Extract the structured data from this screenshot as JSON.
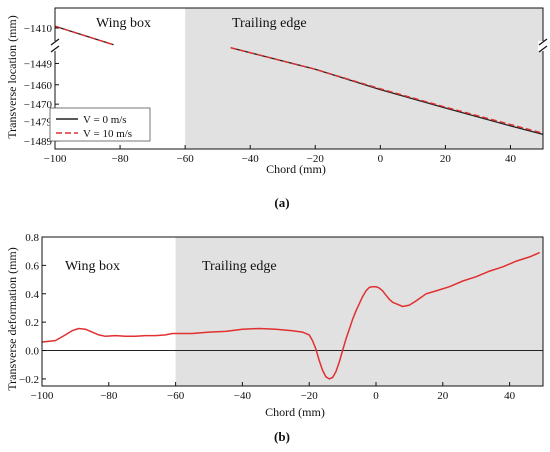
{
  "chart_data": [
    {
      "type": "line",
      "panel_label": "(a)",
      "xlabel": "Chord (mm)",
      "ylabel": "Transverse location (mm)",
      "xlim": [
        -100,
        50
      ],
      "ylim_upper_segment": [
        -1413,
        -1408
      ],
      "ylim_lower_segment": [
        -1489,
        -1440
      ],
      "axis_break": true,
      "x_ticks": [
        -100,
        -80,
        -60,
        -40,
        -20,
        0,
        20,
        40
      ],
      "x_tick_labels": [
        "−100",
        "−80",
        "−60",
        "−40",
        "−20",
        "0",
        "20",
        "40"
      ],
      "y_ticks": [
        -1410,
        -1449,
        -1460,
        -1470,
        -1479,
        -1489
      ],
      "y_tick_labels": [
        "−1410",
        "−1449",
        "−1460",
        "−1470",
        "−1479",
        "−1489"
      ],
      "grid": false,
      "legend_placement": "bottom-left",
      "regions": [
        {
          "label": "Wing box",
          "x_range": [
            -100,
            -60
          ],
          "shade": "#ffffff"
        },
        {
          "label": "Trailing edge",
          "x_range": [
            -60,
            50
          ],
          "shade": "#e1e1e1"
        }
      ],
      "series": [
        {
          "name": "V = 0 m/s",
          "color": "#222222",
          "dash": "solid",
          "segments": [
            {
              "x": [
                -100,
                -82
              ],
              "y": [
                -1409.7,
                -1412.8
              ]
            },
            {
              "x": [
                -46,
                -20,
                0,
                20,
                40,
                50
              ],
              "y": [
                -1440.9,
                -1452.0,
                -1462.5,
                -1472.0,
                -1481.2,
                -1485.6
              ]
            }
          ]
        },
        {
          "name": "V = 10 m/s",
          "color": "#e03030",
          "dash": "dashed",
          "segments": [
            {
              "x": [
                -100,
                -82
              ],
              "y": [
                -1409.7,
                -1412.8
              ]
            },
            {
              "x": [
                -46,
                -20,
                0,
                20,
                40,
                50
              ],
              "y": [
                -1440.9,
                -1452.0,
                -1462.1,
                -1471.5,
                -1480.5,
                -1485.0
              ]
            }
          ]
        }
      ]
    },
    {
      "type": "line",
      "panel_label": "(b)",
      "xlabel": "Chord (mm)",
      "ylabel": "Transverse deformation (mm)",
      "xlim": [
        -100,
        50
      ],
      "ylim": [
        -0.25,
        0.8
      ],
      "x_ticks": [
        -100,
        -80,
        -60,
        -40,
        -20,
        0,
        20,
        40
      ],
      "x_tick_labels": [
        "−100",
        "−80",
        "−60",
        "−40",
        "−20",
        "0",
        "20",
        "40"
      ],
      "y_ticks": [
        -0.2,
        0.0,
        0.2,
        0.4,
        0.6,
        0.8
      ],
      "y_tick_labels": [
        "−0.2",
        "0.0",
        "0.2",
        "0.4",
        "0.6",
        "0.8"
      ],
      "grid": false,
      "reference_line": {
        "y": 0,
        "color": "#222222"
      },
      "regions": [
        {
          "label": "Wing box",
          "x_range": [
            -100,
            -60
          ],
          "shade": "#ffffff"
        },
        {
          "label": "Trailing edge",
          "x_range": [
            -60,
            50
          ],
          "shade": "#e1e1e1"
        }
      ],
      "series": [
        {
          "color": "#e03030",
          "x": [
            -100,
            -96,
            -93,
            -91,
            -89,
            -87,
            -85,
            -83,
            -81,
            -78,
            -75,
            -72,
            -69,
            -66,
            -63,
            -61,
            -55,
            -50,
            -45,
            -40,
            -35,
            -30,
            -25,
            -22,
            -20,
            -19,
            -18,
            -17,
            -16,
            -15,
            -14,
            -13,
            -12,
            -11,
            -10,
            -9,
            -8,
            -7,
            -6,
            -5,
            -4,
            -3,
            -2,
            -1,
            0,
            1,
            2,
            3,
            4,
            5,
            6,
            8,
            10,
            12,
            15,
            18,
            22,
            26,
            30,
            34,
            38,
            42,
            46,
            49
          ],
          "y": [
            0.06,
            0.07,
            0.11,
            0.14,
            0.155,
            0.15,
            0.13,
            0.11,
            0.1,
            0.105,
            0.1,
            0.1,
            0.105,
            0.105,
            0.11,
            0.12,
            0.12,
            0.13,
            0.135,
            0.15,
            0.155,
            0.15,
            0.14,
            0.13,
            0.11,
            0.07,
            0.01,
            -0.07,
            -0.14,
            -0.185,
            -0.2,
            -0.19,
            -0.15,
            -0.08,
            0.0,
            0.08,
            0.15,
            0.22,
            0.28,
            0.33,
            0.38,
            0.42,
            0.445,
            0.45,
            0.45,
            0.44,
            0.42,
            0.39,
            0.36,
            0.34,
            0.33,
            0.31,
            0.32,
            0.35,
            0.4,
            0.42,
            0.45,
            0.49,
            0.52,
            0.56,
            0.59,
            0.63,
            0.66,
            0.69
          ]
        }
      ]
    }
  ]
}
